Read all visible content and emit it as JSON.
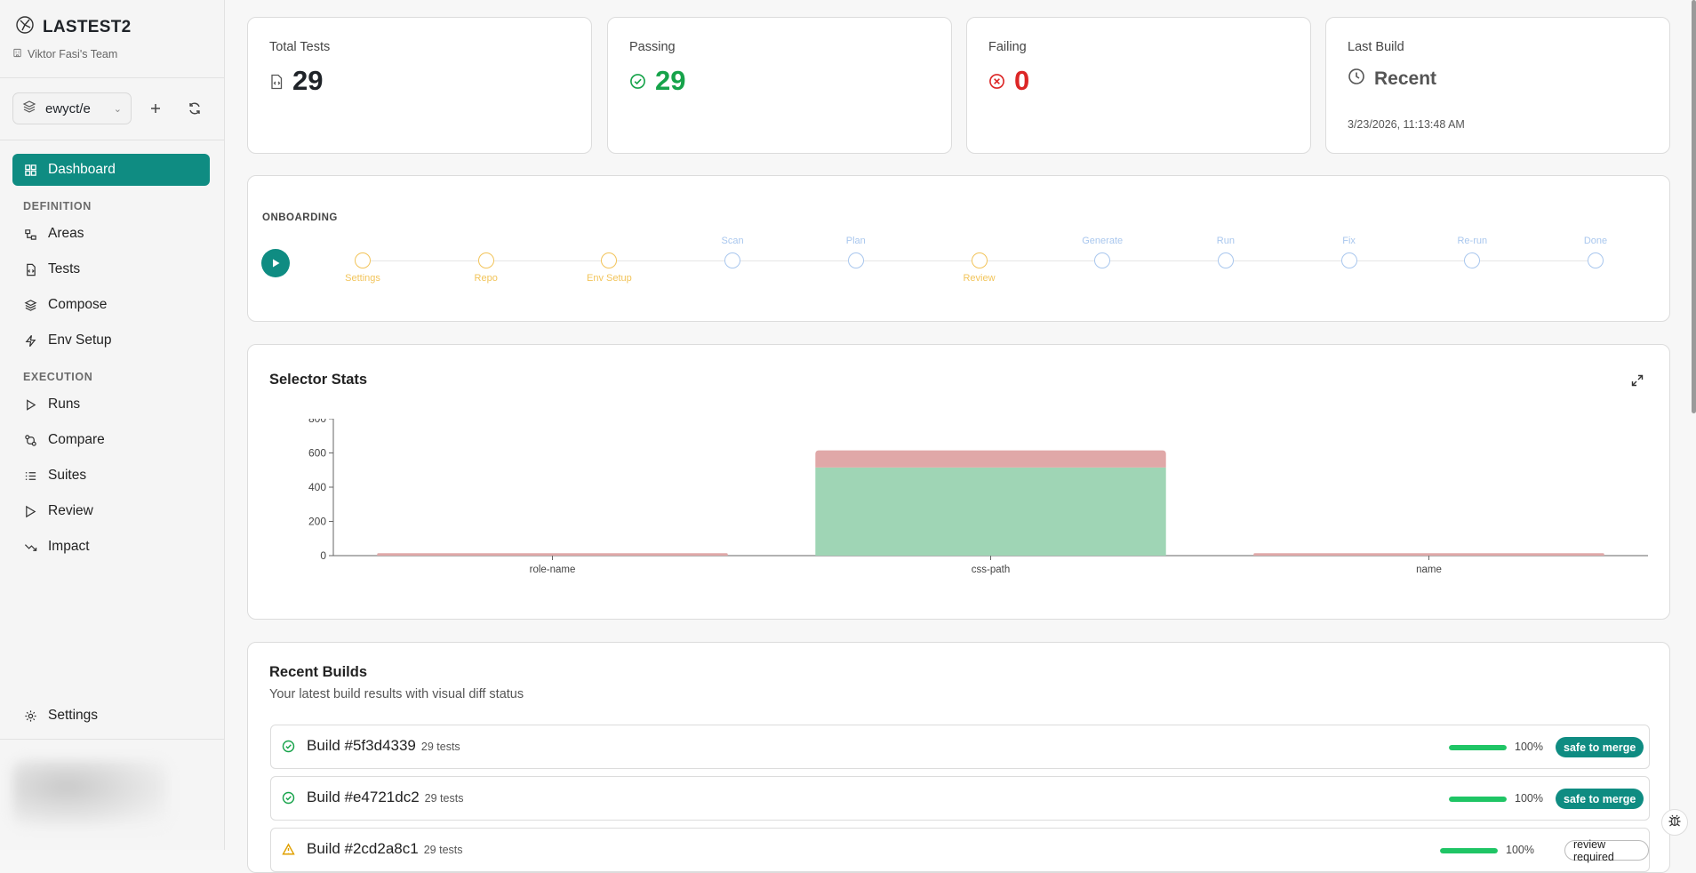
{
  "brand": {
    "name": "LASTEST2",
    "team": "Viktor Fasi's Team"
  },
  "project": {
    "selected": "ewyct/e"
  },
  "nav": {
    "dashboard": "Dashboard",
    "definition_heading": "DEFINITION",
    "areas": "Areas",
    "tests": "Tests",
    "compose": "Compose",
    "env_setup": "Env Setup",
    "execution_heading": "EXECUTION",
    "runs": "Runs",
    "compare": "Compare",
    "suites": "Suites",
    "review": "Review",
    "impact": "Impact",
    "settings": "Settings"
  },
  "stats": {
    "total": {
      "label": "Total Tests",
      "value": "29"
    },
    "passing": {
      "label": "Passing",
      "value": "29"
    },
    "failing": {
      "label": "Failing",
      "value": "0"
    },
    "last_build": {
      "label": "Last Build",
      "value": "Recent",
      "timestamp": "3/23/2026, 11:13:48 AM"
    }
  },
  "onboarding": {
    "title": "ONBOARDING",
    "steps": [
      {
        "label": "Settings",
        "state": "done"
      },
      {
        "label": "Repo",
        "state": "done"
      },
      {
        "label": "Env Setup",
        "state": "done"
      },
      {
        "label": "Scan",
        "state": "pending"
      },
      {
        "label": "Plan",
        "state": "pending"
      },
      {
        "label": "Review",
        "state": "done"
      },
      {
        "label": "Generate",
        "state": "pending"
      },
      {
        "label": "Run",
        "state": "pending"
      },
      {
        "label": "Fix",
        "state": "pending"
      },
      {
        "label": "Re-run",
        "state": "pending"
      },
      {
        "label": "Done",
        "state": "pending"
      }
    ]
  },
  "selector_stats": {
    "title": "Selector Stats"
  },
  "chart_data": {
    "type": "bar",
    "stacked": true,
    "categories": [
      "role-name",
      "css-path",
      "name"
    ],
    "series": [
      {
        "values": [
          0,
          515,
          0
        ],
        "color": "#9fd5b5"
      },
      {
        "values": [
          14,
          100,
          14
        ],
        "color": "#e0a8a8"
      }
    ],
    "ylim": [
      0,
      800
    ],
    "yticks": [
      "0",
      "200",
      "400",
      "600",
      "800"
    ]
  },
  "recent_builds": {
    "title": "Recent Builds",
    "subtitle": "Your latest build results with visual diff status",
    "items": [
      {
        "name": "Build #5f3d4339",
        "tests": "29 tests",
        "percent": "100%",
        "progress": 1.0,
        "badge": "safe to merge",
        "status": "success"
      },
      {
        "name": "Build #e4721dc2",
        "tests": "29 tests",
        "percent": "100%",
        "progress": 1.0,
        "badge": "safe to merge",
        "status": "success"
      },
      {
        "name": "Build #2cd2a8c1",
        "tests": "29 tests",
        "percent": "100%",
        "progress": 1.0,
        "badge": "review required",
        "status": "warning"
      }
    ]
  },
  "colors": {
    "accent": "#0f8c82",
    "pass": "#16a34a",
    "fail": "#dc2626",
    "step_done": "#f2c45a",
    "step_pending": "#a9c7ee"
  }
}
